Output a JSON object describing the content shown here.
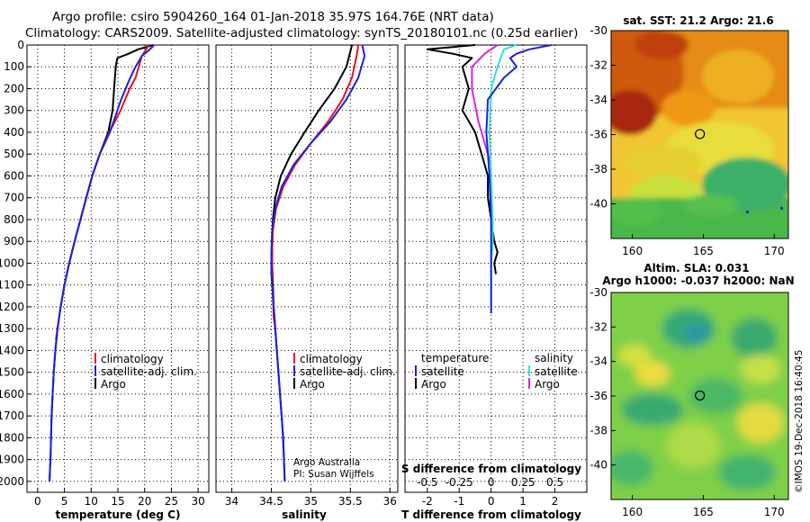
{
  "header": {
    "line1": "Argo profile: csiro 5904260_164 01-Jan-2018 35.97S 164.76E (NRT data)",
    "line2": "Climatology: CARS2009. Satellite-adjusted climatology: synTS_20180101.nc (0.25d earlier)"
  },
  "colors": {
    "climatology": "#e8141b",
    "satellite": "#1a22e0",
    "argo": "#000000",
    "sat_salinity": "#33e0e0",
    "argo_salinity": "#e020e0"
  },
  "chart_data": [
    {
      "type": "line",
      "title": "temperature",
      "xlabel": "temperature (deg C)",
      "xlim": [
        -2,
        32
      ],
      "ylim": [
        2050,
        0
      ],
      "xticks": [
        "0",
        "5",
        "10",
        "15",
        "20",
        "25",
        "30"
      ],
      "xtick_values": [
        0,
        5,
        10,
        15,
        20,
        25,
        30
      ],
      "yticks": [
        "0",
        "100",
        "200",
        "300",
        "400",
        "500",
        "600",
        "700",
        "800",
        "900",
        "1000",
        "1100",
        "1200",
        "1300",
        "1400",
        "1500",
        "1600",
        "1700",
        "1800",
        "1900",
        "2000"
      ],
      "ytick_values": [
        0,
        100,
        200,
        300,
        400,
        500,
        600,
        700,
        800,
        900,
        1000,
        1100,
        1200,
        1300,
        1400,
        1500,
        1600,
        1700,
        1800,
        1900,
        2000
      ],
      "legend": [
        "climatology",
        "satellite-adj. clim.",
        "Argo"
      ],
      "series": [
        {
          "name": "climatology",
          "x": [
            20.8,
            19.5,
            18.9,
            18.3,
            17.2,
            15.5,
            13.4,
            11.6,
            10.2,
            9.1,
            8.0,
            6.9,
            5.9,
            5.0,
            4.3,
            3.7,
            3.4
          ],
          "y": [
            0,
            50,
            100,
            150,
            200,
            300,
            400,
            500,
            600,
            700,
            800,
            900,
            1000,
            1100,
            1200,
            1300,
            1350
          ]
        },
        {
          "name": "satellite-adj. clim.",
          "x": [
            21.8,
            21.0,
            19.5,
            18.3,
            17.3,
            15.6,
            13.5,
            11.6,
            10.2,
            9.1,
            8.0,
            6.9,
            5.9,
            5.0,
            4.3,
            3.7,
            3.3,
            3.0,
            2.8,
            2.6,
            2.5,
            2.4,
            2.3,
            2.2
          ],
          "y": [
            0,
            20,
            50,
            100,
            150,
            250,
            400,
            500,
            600,
            700,
            800,
            900,
            1000,
            1100,
            1200,
            1300,
            1400,
            1500,
            1600,
            1700,
            1800,
            1900,
            1950,
            2000
          ]
        },
        {
          "name": "Argo",
          "x": [
            21.6,
            18.8,
            17.0,
            14.9,
            14.6,
            14.3,
            14.0,
            13.2,
            11.6,
            10.2,
            9.1,
            8.0,
            6.9,
            5.9,
            5.0,
            4.3,
            3.7,
            3.3,
            3.0,
            2.8,
            2.6,
            2.5,
            2.4,
            2.3,
            2.2
          ],
          "y": [
            0,
            20,
            40,
            60,
            100,
            200,
            300,
            400,
            500,
            600,
            700,
            800,
            900,
            1000,
            1100,
            1200,
            1300,
            1400,
            1500,
            1600,
            1700,
            1800,
            1900,
            1950,
            2000
          ]
        }
      ]
    },
    {
      "type": "line",
      "title": "salinity",
      "xlabel": "salinity",
      "xlim": [
        33.8,
        36.1
      ],
      "ylim": [
        2050,
        0
      ],
      "xticks": [
        "34",
        "34.5",
        "35",
        "35.5",
        "36"
      ],
      "xtick_values": [
        34,
        34.5,
        35,
        35.5,
        36
      ],
      "legend": [
        "climatology",
        "satellite-adj. clim.",
        "Argo"
      ],
      "annotations": [
        "Argo Australia",
        "PI: Susan Wijffels"
      ],
      "series": [
        {
          "name": "climatology",
          "x": [
            35.6,
            35.58,
            35.52,
            35.4,
            35.22,
            35.0,
            34.8,
            34.65,
            34.56,
            34.52,
            34.51,
            34.51,
            34.52,
            34.53,
            34.55
          ],
          "y": [
            0,
            50,
            150,
            250,
            350,
            450,
            550,
            650,
            750,
            850,
            950,
            1050,
            1150,
            1250,
            1300
          ]
        },
        {
          "name": "satellite-adj. clim.",
          "x": [
            35.65,
            35.68,
            35.6,
            35.45,
            35.25,
            35.0,
            34.78,
            34.63,
            34.55,
            34.51,
            34.5,
            34.5,
            34.52,
            34.54,
            34.56,
            34.58,
            34.6,
            34.62,
            34.64,
            34.66,
            34.67
          ],
          "y": [
            0,
            50,
            150,
            250,
            350,
            450,
            550,
            650,
            750,
            850,
            950,
            1050,
            1150,
            1250,
            1350,
            1450,
            1550,
            1650,
            1750,
            1900,
            2000
          ]
        },
        {
          "name": "Argo",
          "x": [
            35.52,
            35.45,
            35.3,
            35.1,
            34.92,
            34.75,
            34.62,
            34.55,
            34.52,
            34.51,
            34.51,
            34.52,
            34.53,
            34.55,
            34.57,
            34.59,
            34.61,
            34.63,
            34.65,
            34.66,
            34.67
          ],
          "y": [
            0,
            100,
            200,
            300,
            400,
            500,
            600,
            700,
            800,
            900,
            1000,
            1100,
            1200,
            1300,
            1400,
            1500,
            1600,
            1700,
            1800,
            1900,
            2000
          ]
        }
      ]
    },
    {
      "type": "line",
      "title": "difference from climatology",
      "xlabel": "T difference from climatology",
      "x2label": "S difference from climatology",
      "xlim": [
        -2.7,
        3.0
      ],
      "ylim": [
        2050,
        0
      ],
      "xticks": [
        "-2",
        "-1",
        "0",
        "1",
        "2"
      ],
      "xtick_values": [
        -2,
        -1,
        0,
        1,
        2
      ],
      "x2ticks": [
        "-0.5",
        "-0.25",
        "0",
        "0.25",
        "0.5"
      ],
      "x2tick_positions": [
        -2,
        -1,
        0,
        1,
        2
      ],
      "legend_left_title": "temperature",
      "legend_right_title": "salinity",
      "legend": [
        "satellite",
        "Argo",
        "satellite",
        "Argo"
      ],
      "series": [
        {
          "name": "T satellite",
          "x": [
            1.9,
            1.2,
            0.8,
            0.6,
            0.8,
            0.4,
            -0.1,
            -0.15,
            -0.05,
            0.0,
            0.0,
            0.0,
            0.0,
            0.0
          ],
          "y": [
            0,
            20,
            40,
            60,
            100,
            150,
            250,
            400,
            600,
            800,
            900,
            1000,
            1100,
            1230
          ]
        },
        {
          "name": "T Argo",
          "x": [
            -0.5,
            -2.0,
            -1.2,
            -0.6,
            -0.9,
            -0.8,
            -0.7,
            -0.9,
            -0.5,
            -0.3,
            -0.1,
            -0.1,
            0.0,
            0.1,
            0.2,
            0.1,
            0.15
          ],
          "y": [
            0,
            20,
            40,
            60,
            100,
            150,
            200,
            300,
            400,
            500,
            600,
            700,
            800,
            900,
            950,
            1000,
            1050
          ]
        },
        {
          "name": "S satellite",
          "x": [
            0.8,
            0.4,
            0.3,
            0.2,
            0.0,
            -0.05,
            0.0,
            0.05,
            0.05,
            0.0,
            0.0
          ],
          "y": [
            0,
            20,
            60,
            100,
            200,
            400,
            600,
            800,
            900,
            1000,
            1230
          ]
        },
        {
          "name": "S Argo",
          "x": [
            0.2,
            -0.2,
            -0.6,
            -0.6,
            -0.4,
            -0.2,
            0.0
          ],
          "y": [
            0,
            40,
            100,
            200,
            350,
            450,
            550
          ]
        }
      ]
    },
    {
      "type": "heatmap",
      "title": "sat. SST: 21.2 Argo: 21.6",
      "xlim": [
        158.5,
        171
      ],
      "ylim": [
        -42,
        -30
      ],
      "xticks": [
        "160",
        "165",
        "170"
      ],
      "xtick_values": [
        160,
        165,
        170
      ],
      "yticks": [
        "-30",
        "-32",
        "-34",
        "-36",
        "-38",
        "-40"
      ],
      "ytick_values": [
        -30,
        -32,
        -34,
        -36,
        -38,
        -40
      ],
      "marker": {
        "lon": 164.76,
        "lat": -35.97
      }
    },
    {
      "type": "heatmap",
      "title": "Altim. SLA: 0.031",
      "subtitle": "Argo h1000: -0.037 h2000: NaN",
      "xlim": [
        158.5,
        171
      ],
      "ylim": [
        -42,
        -30
      ],
      "xticks": [
        "160",
        "165",
        "170"
      ],
      "xtick_values": [
        160,
        165,
        170
      ],
      "yticks": [
        "-30",
        "-32",
        "-34",
        "-36",
        "-38",
        "-40"
      ],
      "ytick_values": [
        -30,
        -32,
        -34,
        -36,
        -38,
        -40
      ],
      "marker": {
        "lon": 164.76,
        "lat": -35.97
      }
    }
  ],
  "footer": {
    "stamp": "©IMOS 19-Dec-2018 16:40:45"
  }
}
